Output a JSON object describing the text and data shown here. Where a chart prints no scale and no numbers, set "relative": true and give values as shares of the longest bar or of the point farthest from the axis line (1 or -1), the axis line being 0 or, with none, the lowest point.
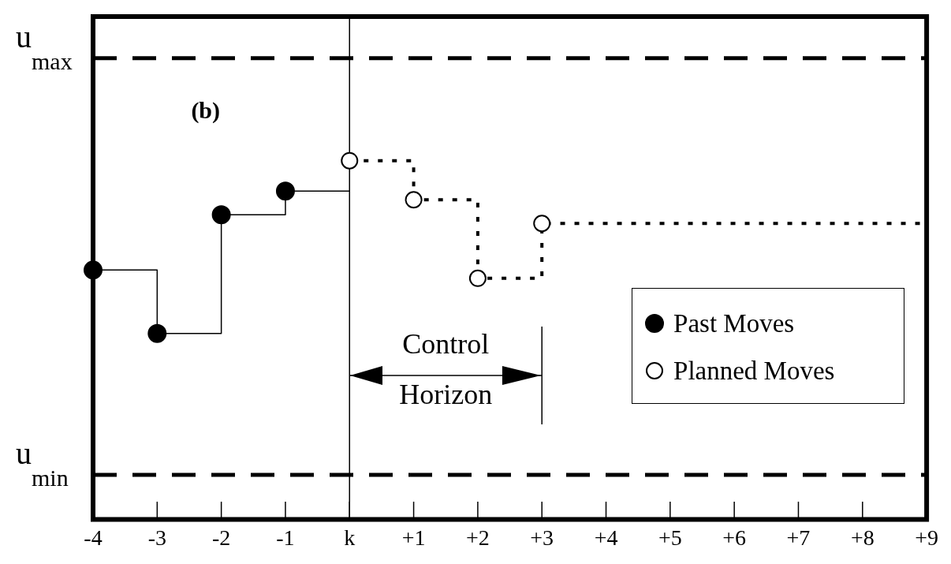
{
  "chart_data": {
    "type": "step",
    "relative": true,
    "categories": [
      "-4",
      "-3",
      "-2",
      "-1",
      "k",
      "+1",
      "+2",
      "+3",
      "+4",
      "+5",
      "+6",
      "+7",
      "+8",
      "+9"
    ],
    "series": [
      {
        "name": "Past Moves",
        "color": "#000000",
        "line_style": "solid",
        "values": [
          0.695,
          0.518,
          0.849,
          0.915,
          0.915,
          null,
          null,
          null,
          null,
          null,
          null,
          null,
          null,
          null
        ]
      },
      {
        "name": "Planned Moves",
        "color": "#000000",
        "line_style": "dotted",
        "values": [
          null,
          null,
          null,
          null,
          1,
          0.891,
          0.672,
          0.825,
          null,
          null,
          null,
          null,
          null,
          0.825
        ]
      }
    ],
    "marker": "circle",
    "ref_lines": [
      {
        "axis": "y",
        "value": 1.286,
        "label": "u$_{max}$",
        "line_style": "dashed",
        "color": "#000000"
      },
      {
        "axis": "y",
        "value": 0.124,
        "label": "u$_{min}$",
        "line_style": "dashed",
        "color": "#000000"
      },
      {
        "axis": "x",
        "value": "k",
        "color": "#000000",
        "line_style": "solid"
      },
      {
        "axis": "x",
        "value": "+3",
        "color": "#000000",
        "line_style": "solid"
      }
    ],
    "annotations": [
      "(b)",
      "Control Horizon"
    ],
    "legend": "bottom right",
    "grid": false
  }
}
